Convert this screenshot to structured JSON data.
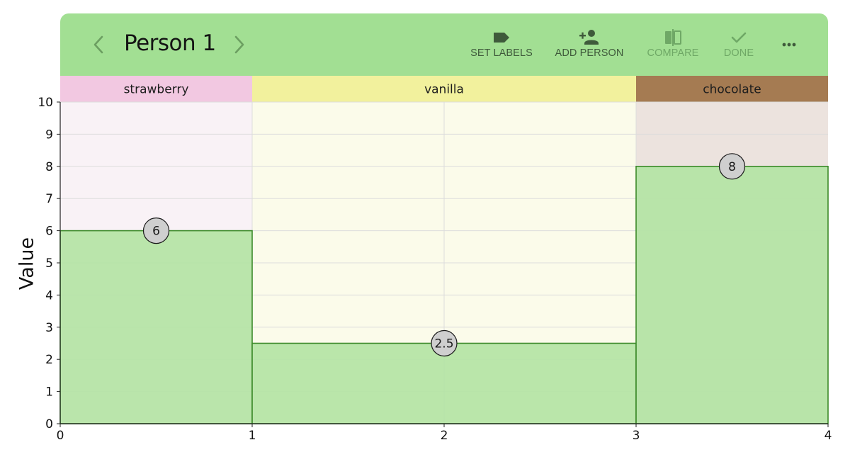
{
  "toolbar": {
    "title": "Person 1",
    "actions": [
      {
        "label": "SET LABELS",
        "icon": "label-icon",
        "enabled": true
      },
      {
        "label": "ADD PERSON",
        "icon": "add-person-icon",
        "enabled": true
      },
      {
        "label": "COMPARE",
        "icon": "compare-icon",
        "enabled": false
      },
      {
        "label": "DONE",
        "icon": "check-icon",
        "enabled": false
      }
    ],
    "more_icon": "more-horizontal-icon",
    "prev_icon": "chevron-left-icon",
    "next_icon": "chevron-right-icon",
    "color": "#a2df93"
  },
  "chart_data": {
    "type": "bar",
    "categories": [
      "strawberry",
      "vanilla",
      "chocolate"
    ],
    "bins": [
      {
        "label": "strawberry",
        "x0": 0,
        "x1": 1,
        "value": 6,
        "label_bg": "#f2c8e1",
        "area_bg": "#f9f2f6"
      },
      {
        "label": "vanilla",
        "x0": 1,
        "x1": 3,
        "value": 2.5,
        "label_bg": "#f2f19d",
        "area_bg": "#fbfbea"
      },
      {
        "label": "chocolate",
        "x0": 3,
        "x1": 4,
        "value": 8,
        "label_bg": "#a57b52",
        "area_bg": "#ece3de"
      }
    ],
    "value_labels": [
      "6",
      "2.5",
      "8"
    ],
    "xlim": [
      0,
      4
    ],
    "ylim": [
      0,
      10
    ],
    "x_ticks": [
      "0",
      "1",
      "2",
      "3",
      "4"
    ],
    "y_ticks": [
      "0",
      "1",
      "2",
      "3",
      "4",
      "5",
      "6",
      "7",
      "8",
      "9",
      "10"
    ],
    "ylabel": "Value",
    "xlabel": "",
    "grid": true,
    "bar_fill": "#b2e3a3",
    "bar_stroke": "#3c8a2a"
  }
}
